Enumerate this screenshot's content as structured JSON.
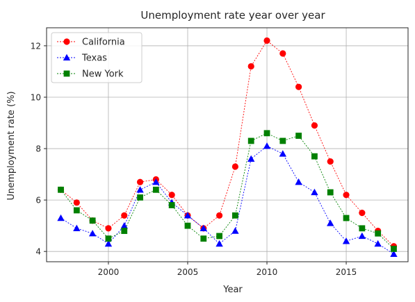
{
  "chart_data": {
    "type": "line",
    "title": "Unemployment rate year over year",
    "xlabel": "Year",
    "ylabel": "Unemployment rate (%)",
    "xlim": [
      1996.1,
      2018.9
    ],
    "ylim": [
      3.6,
      12.7
    ],
    "xticks": [
      2000,
      2005,
      2010,
      2015
    ],
    "yticks": [
      4,
      6,
      8,
      10,
      12
    ],
    "grid": true,
    "legend_position": "top-left",
    "x": [
      1997,
      1998,
      1999,
      2000,
      2001,
      2002,
      2003,
      2004,
      2005,
      2006,
      2007,
      2008,
      2009,
      2010,
      2011,
      2012,
      2013,
      2014,
      2015,
      2016,
      2017,
      2018
    ],
    "series": [
      {
        "name": "California",
        "color": "#ff0000",
        "marker": "circle",
        "values": [
          6.4,
          5.9,
          5.2,
          4.9,
          5.4,
          6.7,
          6.8,
          6.2,
          5.4,
          4.9,
          5.4,
          7.3,
          11.2,
          12.2,
          11.7,
          10.4,
          8.9,
          7.5,
          6.2,
          5.5,
          4.8,
          4.2
        ]
      },
      {
        "name": "Texas",
        "color": "#0000ff",
        "marker": "triangle",
        "values": [
          5.3,
          4.9,
          4.7,
          4.3,
          5.0,
          6.4,
          6.7,
          5.9,
          5.4,
          4.9,
          4.3,
          4.8,
          7.6,
          8.1,
          7.8,
          6.7,
          6.3,
          5.1,
          4.4,
          4.6,
          4.3,
          3.9
        ]
      },
      {
        "name": "New York",
        "color": "#008000",
        "marker": "square",
        "values": [
          6.4,
          5.6,
          5.2,
          4.5,
          4.8,
          6.1,
          6.4,
          5.8,
          5.0,
          4.5,
          4.6,
          5.4,
          8.3,
          8.6,
          8.3,
          8.5,
          7.7,
          6.3,
          5.3,
          4.9,
          4.7,
          4.1
        ]
      }
    ]
  }
}
